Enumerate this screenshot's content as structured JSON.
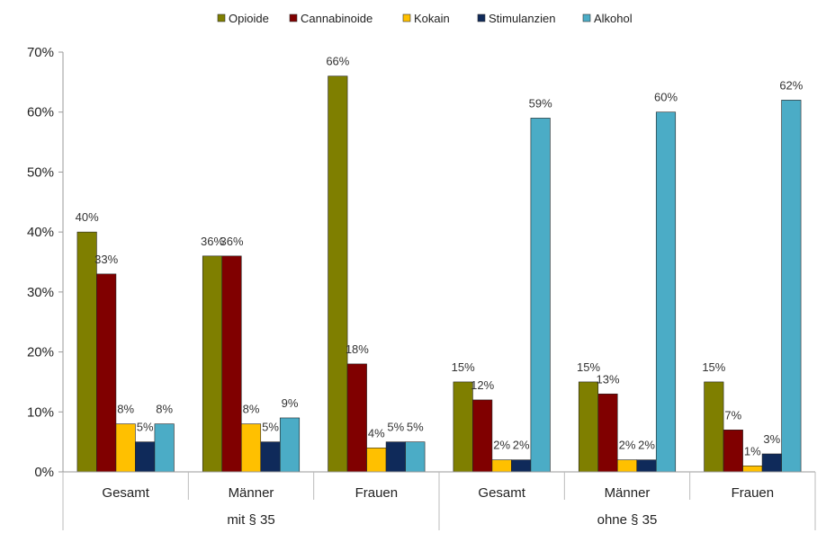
{
  "chart_data": {
    "type": "bar",
    "title": "",
    "xlabel": "",
    "ylabel": "",
    "ylim": [
      0,
      70
    ],
    "yticks": [
      "0%",
      "10%",
      "20%",
      "30%",
      "40%",
      "50%",
      "60%",
      "70%"
    ],
    "grid": false,
    "legend_position": "top",
    "groups": [
      {
        "label": "mit § 35",
        "categories": [
          "Gesamt",
          "Männer",
          "Frauen"
        ]
      },
      {
        "label": "ohne § 35",
        "categories": [
          "Gesamt",
          "Männer",
          "Frauen"
        ]
      }
    ],
    "categories": [
      "Gesamt",
      "Männer",
      "Frauen",
      "Gesamt",
      "Männer",
      "Frauen"
    ],
    "series": [
      {
        "name": "Opioide",
        "color": "#7f7f00",
        "values": [
          40,
          36,
          66,
          15,
          15,
          15
        ],
        "labels": [
          "40%",
          "36%",
          "66%",
          "15%",
          "15%",
          "15%"
        ]
      },
      {
        "name": "Cannabinoide",
        "color": "#800000",
        "values": [
          33,
          36,
          18,
          12,
          13,
          7
        ],
        "labels": [
          "33%",
          "36%",
          "18%",
          "12%",
          "13%",
          "7%"
        ]
      },
      {
        "name": "Kokain",
        "color": "#ffc000",
        "values": [
          8,
          8,
          4,
          2,
          2,
          1
        ],
        "labels": [
          "8%",
          "8%",
          "4%",
          "2%",
          "2%",
          "1%"
        ]
      },
      {
        "name": "Stimulanzien",
        "color": "#0f2a5a",
        "values": [
          5,
          5,
          5,
          2,
          2,
          3
        ],
        "labels": [
          "5%",
          "5%",
          "5%",
          "2%",
          "2%",
          "3%"
        ]
      },
      {
        "name": "Alkohol",
        "color": "#4bacc6",
        "values": [
          8,
          9,
          5,
          59,
          60,
          62
        ],
        "labels": [
          "8%",
          "9%",
          "5%",
          "59%",
          "60%",
          "62%"
        ]
      }
    ]
  }
}
